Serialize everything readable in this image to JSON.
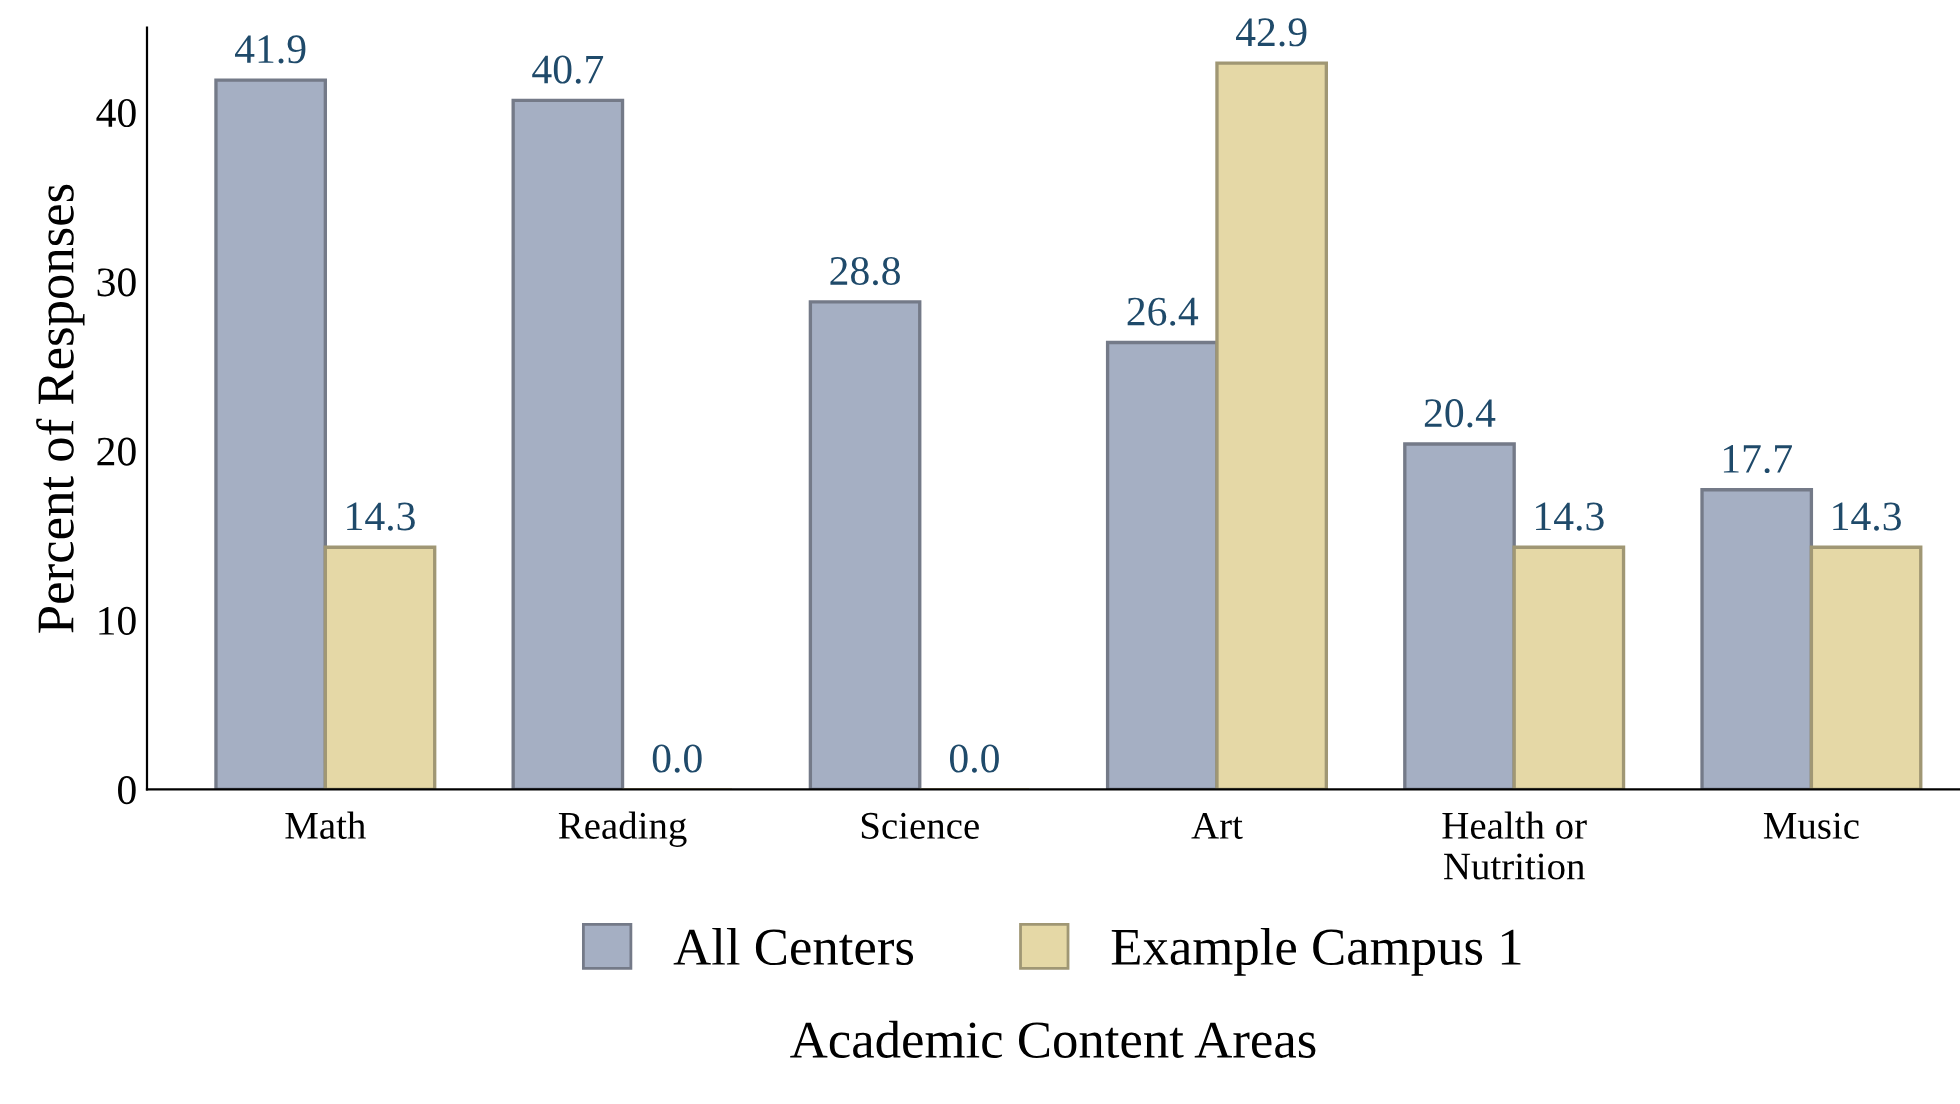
{
  "chart_data": {
    "type": "bar",
    "xlabel": "Academic Content Areas",
    "ylabel": "Percent of Responses",
    "categories": [
      "Math",
      "Reading",
      "Science",
      "Art",
      "Health or\nNutrition",
      "Music"
    ],
    "series": [
      {
        "name": "All Centers",
        "color": "#a5afc3",
        "values": [
          41.9,
          40.7,
          28.8,
          26.4,
          20.4,
          17.7
        ],
        "value_labels": [
          "41.9",
          "40.7",
          "28.8",
          "26.4",
          "20.4",
          "17.7"
        ]
      },
      {
        "name": "Example Campus 1",
        "color": "#e5d8a6",
        "values": [
          14.3,
          0,
          0,
          42.9,
          14.3,
          14.3
        ],
        "value_labels": [
          "14.3",
          "0.0",
          "0.0",
          "42.9",
          "14.3",
          "14.3"
        ]
      }
    ],
    "ylim": [
      0,
      45
    ],
    "yticks": [
      0,
      10,
      20,
      30,
      40
    ],
    "grid": false,
    "legend": "bottom"
  }
}
